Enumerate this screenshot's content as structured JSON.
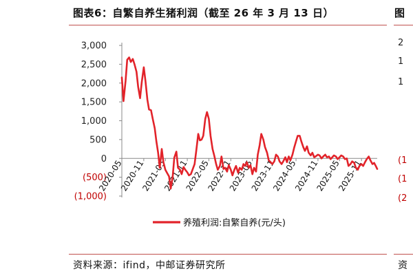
{
  "figure": {
    "title": "图表6：自繁自养生猪利润（截至 26 年 3 月 13 日）",
    "source": "资料来源：ifind，中邮证券研究所",
    "next_title_fragment": "图",
    "next_source_fragment": "资",
    "next_y_ticks": [
      "2",
      "1",
      "1",
      "(1",
      "(1",
      "(2"
    ]
  },
  "colors": {
    "series": "#e2232a",
    "negative_tick": "#c00000",
    "rule": "#c0504d"
  },
  "chart_data": {
    "type": "line",
    "title": "",
    "xlabel": "",
    "ylabel": "",
    "ylim": [
      -1000,
      3000
    ],
    "y_ticks": [
      {
        "value": 3000,
        "label": "3,000"
      },
      {
        "value": 2500,
        "label": "2,500"
      },
      {
        "value": 2000,
        "label": "2,000"
      },
      {
        "value": 1500,
        "label": "1,500"
      },
      {
        "value": 1000,
        "label": "1,000"
      },
      {
        "value": 500,
        "label": "500"
      },
      {
        "value": 0,
        "label": "0"
      },
      {
        "value": -500,
        "label": "(500)"
      },
      {
        "value": -1000,
        "label": "(1,000)"
      }
    ],
    "x_ticks": [
      {
        "x": "2020-05",
        "label": "2020-05"
      },
      {
        "x": "2020-11",
        "label": "2020-11"
      },
      {
        "x": "2021-05",
        "label": "2021-05"
      },
      {
        "x": "2021-11",
        "label": "2021-11"
      },
      {
        "x": "2022-05",
        "label": "2022-05"
      },
      {
        "x": "2022-11",
        "label": "2022-11"
      },
      {
        "x": "2023-05",
        "label": "2023-05"
      },
      {
        "x": "2023-11",
        "label": "2023-11"
      },
      {
        "x": "2024-05",
        "label": "2024-05"
      },
      {
        "x": "2024-11",
        "label": "2024-11"
      },
      {
        "x": "2025-05",
        "label": "2025-05"
      },
      {
        "x": "2025-11",
        "label": "2025-11"
      }
    ],
    "x_range": [
      "2020-05-01",
      "2026-03-13"
    ],
    "legend": {
      "position": "bottom"
    },
    "series": [
      {
        "name": "养殖利润:自繁自养(元/头)",
        "points": [
          [
            "2020-05-01",
            2150
          ],
          [
            "2020-05-15",
            1520
          ],
          [
            "2020-06-01",
            2050
          ],
          [
            "2020-06-15",
            2620
          ],
          [
            "2020-07-01",
            2680
          ],
          [
            "2020-07-15",
            2560
          ],
          [
            "2020-08-01",
            2640
          ],
          [
            "2020-08-15",
            2500
          ],
          [
            "2020-09-01",
            2300
          ],
          [
            "2020-09-15",
            1900
          ],
          [
            "2020-10-01",
            1600
          ],
          [
            "2020-10-15",
            2020
          ],
          [
            "2020-11-01",
            2420
          ],
          [
            "2020-11-15",
            2060
          ],
          [
            "2020-12-01",
            1560
          ],
          [
            "2020-12-15",
            1300
          ],
          [
            "2021-01-01",
            1280
          ],
          [
            "2021-01-15",
            1050
          ],
          [
            "2021-02-01",
            800
          ],
          [
            "2021-02-15",
            450
          ],
          [
            "2021-03-01",
            150
          ],
          [
            "2021-03-15",
            -250
          ],
          [
            "2021-04-01",
            250
          ],
          [
            "2021-04-15",
            -100
          ],
          [
            "2021-05-01",
            -300
          ],
          [
            "2021-05-15",
            -380
          ],
          [
            "2021-06-01",
            -480
          ],
          [
            "2021-06-15",
            -800
          ],
          [
            "2021-07-01",
            -500
          ],
          [
            "2021-07-15",
            20
          ],
          [
            "2021-08-01",
            180
          ],
          [
            "2021-08-15",
            -250
          ],
          [
            "2021-09-01",
            -300
          ],
          [
            "2021-09-15",
            -420
          ],
          [
            "2021-10-01",
            -230
          ],
          [
            "2021-10-15",
            -300
          ],
          [
            "2021-11-01",
            -370
          ],
          [
            "2021-11-15",
            -450
          ],
          [
            "2021-12-01",
            -420
          ],
          [
            "2021-12-15",
            -300
          ],
          [
            "2022-01-01",
            -150
          ],
          [
            "2022-01-15",
            200
          ],
          [
            "2022-02-01",
            650
          ],
          [
            "2022-02-15",
            480
          ],
          [
            "2022-03-01",
            500
          ],
          [
            "2022-03-15",
            600
          ],
          [
            "2022-04-01",
            1050
          ],
          [
            "2022-04-15",
            1230
          ],
          [
            "2022-05-01",
            1050
          ],
          [
            "2022-05-15",
            600
          ],
          [
            "2022-06-01",
            250
          ],
          [
            "2022-06-15",
            80
          ],
          [
            "2022-07-01",
            -150
          ],
          [
            "2022-07-15",
            -300
          ],
          [
            "2022-08-01",
            -200
          ],
          [
            "2022-08-15",
            50
          ],
          [
            "2022-09-01",
            -280
          ],
          [
            "2022-09-15",
            -250
          ],
          [
            "2022-10-01",
            -350
          ],
          [
            "2022-10-15",
            -180
          ],
          [
            "2022-11-01",
            -300
          ],
          [
            "2022-11-15",
            -450
          ],
          [
            "2022-12-01",
            -300
          ],
          [
            "2022-12-15",
            -200
          ],
          [
            "2023-01-01",
            -380
          ],
          [
            "2023-01-15",
            -250
          ],
          [
            "2023-02-01",
            -300
          ],
          [
            "2023-02-15",
            -150
          ],
          [
            "2023-03-01",
            -200
          ],
          [
            "2023-03-15",
            -100
          ],
          [
            "2023-04-01",
            -250
          ],
          [
            "2023-04-15",
            -180
          ],
          [
            "2023-05-01",
            -420
          ],
          [
            "2023-05-15",
            -250
          ],
          [
            "2023-06-01",
            -350
          ],
          [
            "2023-06-15",
            100
          ],
          [
            "2023-07-01",
            350
          ],
          [
            "2023-07-15",
            650
          ],
          [
            "2023-08-01",
            500
          ],
          [
            "2023-08-15",
            300
          ],
          [
            "2023-09-01",
            150
          ],
          [
            "2023-09-15",
            -50
          ],
          [
            "2023-10-01",
            -100
          ],
          [
            "2023-10-15",
            -150
          ],
          [
            "2023-11-01",
            -80
          ],
          [
            "2023-11-15",
            100
          ],
          [
            "2023-12-01",
            50
          ],
          [
            "2023-12-15",
            -80
          ],
          [
            "2024-01-01",
            -150
          ],
          [
            "2024-01-15",
            -80
          ],
          [
            "2024-02-01",
            30
          ],
          [
            "2024-02-15",
            -100
          ],
          [
            "2024-03-01",
            50
          ],
          [
            "2024-03-15",
            -50
          ],
          [
            "2024-04-01",
            100
          ],
          [
            "2024-04-15",
            280
          ],
          [
            "2024-05-01",
            450
          ],
          [
            "2024-05-15",
            600
          ],
          [
            "2024-06-01",
            600
          ],
          [
            "2024-06-15",
            450
          ],
          [
            "2024-07-01",
            300
          ],
          [
            "2024-07-15",
            200
          ],
          [
            "2024-08-01",
            320
          ],
          [
            "2024-08-15",
            150
          ],
          [
            "2024-09-01",
            80
          ],
          [
            "2024-09-15",
            150
          ],
          [
            "2024-10-01",
            30
          ],
          [
            "2024-10-15",
            60
          ],
          [
            "2024-11-01",
            100
          ],
          [
            "2024-11-15",
            80
          ],
          [
            "2024-12-01",
            0
          ],
          [
            "2024-12-15",
            50
          ],
          [
            "2025-01-01",
            100
          ],
          [
            "2025-01-15",
            30
          ],
          [
            "2025-02-01",
            50
          ],
          [
            "2025-02-15",
            -20
          ],
          [
            "2025-03-01",
            30
          ],
          [
            "2025-03-15",
            80
          ],
          [
            "2025-04-01",
            50
          ],
          [
            "2025-04-15",
            -20
          ],
          [
            "2025-05-01",
            30
          ],
          [
            "2025-05-15",
            80
          ],
          [
            "2025-06-01",
            50
          ],
          [
            "2025-06-15",
            -20
          ],
          [
            "2025-07-01",
            0
          ],
          [
            "2025-07-15",
            -200
          ],
          [
            "2025-08-01",
            -150
          ],
          [
            "2025-08-15",
            -80
          ],
          [
            "2025-09-01",
            -120
          ],
          [
            "2025-09-15",
            -250
          ],
          [
            "2025-10-01",
            -300
          ],
          [
            "2025-10-15",
            -200
          ],
          [
            "2025-11-01",
            -150
          ],
          [
            "2025-11-15",
            -200
          ],
          [
            "2025-12-01",
            -100
          ],
          [
            "2025-12-15",
            -20
          ],
          [
            "2026-01-01",
            50
          ],
          [
            "2026-01-15",
            -50
          ],
          [
            "2026-02-01",
            -150
          ],
          [
            "2026-02-15",
            -120
          ],
          [
            "2026-03-01",
            -200
          ],
          [
            "2026-03-13",
            -280
          ]
        ]
      }
    ]
  }
}
